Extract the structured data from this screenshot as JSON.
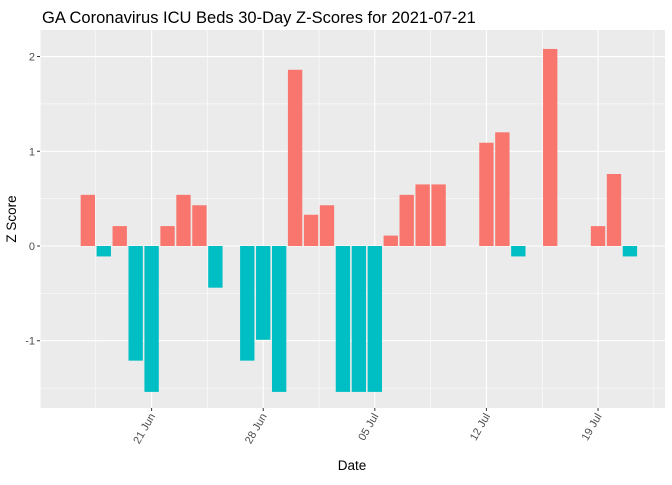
{
  "chart_data": {
    "type": "bar",
    "title": "GA Coronavirus ICU Beds 30-Day Z-Scores for 2021-07-21",
    "xlabel": "Date",
    "ylabel": "Z Score",
    "xlim": [
      "2021-06-14",
      "2021-07-23"
    ],
    "ylim": [
      -1.71,
      2.28
    ],
    "grid": true,
    "legend": "none",
    "colors": {
      "positive": "#F8766D",
      "negative": "#00BFC4",
      "panel": "#EBEBEB",
      "grid": "#FFFFFF"
    },
    "x_ticks": [
      {
        "date": "2021-06-21",
        "label": "21 Jun"
      },
      {
        "date": "2021-06-28",
        "label": "28 Jun"
      },
      {
        "date": "2021-07-05",
        "label": "05 Jul"
      },
      {
        "date": "2021-07-12",
        "label": "12 Jul"
      },
      {
        "date": "2021-07-19",
        "label": "19 Jul"
      }
    ],
    "y_ticks": [
      {
        "value": -1,
        "label": "-1"
      },
      {
        "value": 0,
        "label": "0"
      },
      {
        "value": 1,
        "label": "1"
      },
      {
        "value": 2,
        "label": "2"
      }
    ],
    "bars": [
      {
        "date": "2021-06-17",
        "value": 0.54
      },
      {
        "date": "2021-06-18",
        "value": -0.11
      },
      {
        "date": "2021-06-19",
        "value": 0.21
      },
      {
        "date": "2021-06-20",
        "value": -1.21
      },
      {
        "date": "2021-06-21",
        "value": -1.54
      },
      {
        "date": "2021-06-22",
        "value": 0.21
      },
      {
        "date": "2021-06-23",
        "value": 0.54
      },
      {
        "date": "2021-06-24",
        "value": 0.43
      },
      {
        "date": "2021-06-25",
        "value": -0.44
      },
      {
        "date": "2021-06-27",
        "value": -1.21
      },
      {
        "date": "2021-06-28",
        "value": -0.99
      },
      {
        "date": "2021-06-29",
        "value": -1.54
      },
      {
        "date": "2021-06-30",
        "value": 1.86
      },
      {
        "date": "2021-07-01",
        "value": 0.33
      },
      {
        "date": "2021-07-02",
        "value": 0.43
      },
      {
        "date": "2021-07-03",
        "value": -1.54
      },
      {
        "date": "2021-07-04",
        "value": -1.54
      },
      {
        "date": "2021-07-05",
        "value": -1.54
      },
      {
        "date": "2021-07-06",
        "value": 0.11
      },
      {
        "date": "2021-07-07",
        "value": 0.54
      },
      {
        "date": "2021-07-08",
        "value": 0.65
      },
      {
        "date": "2021-07-09",
        "value": 0.65
      },
      {
        "date": "2021-07-12",
        "value": 1.09
      },
      {
        "date": "2021-07-13",
        "value": 1.2
      },
      {
        "date": "2021-07-14",
        "value": -0.11
      },
      {
        "date": "2021-07-16",
        "value": 2.08
      },
      {
        "date": "2021-07-19",
        "value": 0.21
      },
      {
        "date": "2021-07-20",
        "value": 0.76
      },
      {
        "date": "2021-07-21",
        "value": -0.11
      }
    ]
  }
}
